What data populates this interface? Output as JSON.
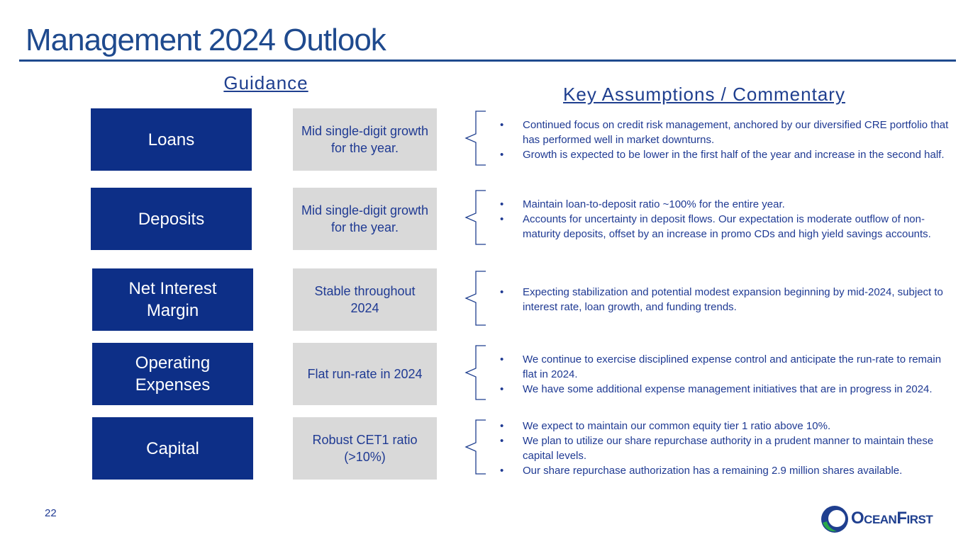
{
  "header": {
    "title": "Management 2024 Outlook"
  },
  "guidance_heading": "Guidance",
  "commentary_heading": "Key Assumptions / Commentary",
  "rows": [
    {
      "label": "Loans",
      "guidance": "Mid single-digit growth for the year.",
      "bullets": [
        "Continued focus on credit risk management, anchored by our diversified CRE portfolio that has performed well in market downturns.",
        "Growth is expected to be lower in the first half of the year and increase in the second half."
      ]
    },
    {
      "label": "Deposits",
      "guidance": "Mid single-digit growth for the year.",
      "bullets": [
        "Maintain loan-to-deposit ratio ~100% for the entire year.",
        "Accounts for uncertainty in deposit flows. Our expectation is moderate outflow of non-maturity deposits, offset by an increase in promo CDs and high yield savings accounts."
      ]
    },
    {
      "label": "Net Interest Margin",
      "guidance": "Stable throughout 2024",
      "bullets": [
        "Expecting stabilization and potential modest expansion beginning by mid-2024, subject to interest rate, loan growth, and funding trends."
      ]
    },
    {
      "label": "Operating Expenses",
      "guidance": "Flat run-rate in 2024",
      "bullets": [
        "We continue to exercise disciplined expense control and anticipate the run-rate to remain flat in 2024.",
        "We have some additional expense management initiatives that are in progress in 2024."
      ]
    },
    {
      "label": "Capital",
      "guidance": "Robust CET1 ratio (>10%)",
      "bullets": [
        "We expect to maintain our common equity tier 1 ratio above 10%.",
        "We plan to utilize our share repurchase authority in a prudent manner to maintain these capital levels.",
        "Our share repurchase authorization has a remaining 2.9 million shares available."
      ]
    }
  ],
  "footer": {
    "page_number": "22",
    "logo": "OceanFirst"
  }
}
